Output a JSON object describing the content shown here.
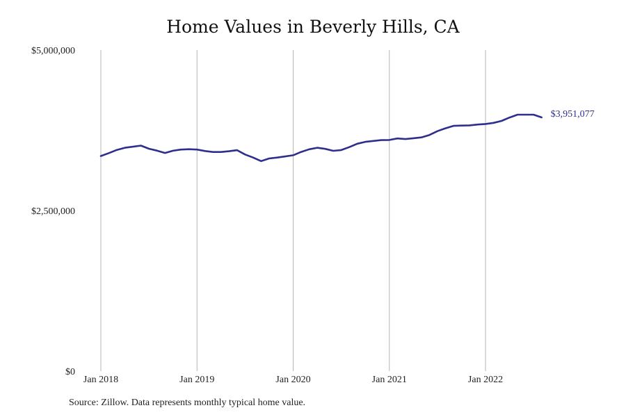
{
  "colors": {
    "line": "#2e2e8c",
    "grid": "#b5b5b5"
  },
  "source": "Source: Zillow. Data represents monthly typical home value.",
  "chart_data": {
    "type": "line",
    "title": "Home Values in Beverly Hills, CA",
    "xlabel": "",
    "ylabel": "",
    "ylim": [
      0,
      5000000
    ],
    "yticks": [
      {
        "value": 0,
        "label": "$0"
      },
      {
        "value": 2500000,
        "label": "$2,500,000"
      },
      {
        "value": 5000000,
        "label": "$5,000,000"
      }
    ],
    "xticks": [
      {
        "value": "2018-01",
        "label": "Jan 2018"
      },
      {
        "value": "2019-01",
        "label": "Jan 2019"
      },
      {
        "value": "2020-01",
        "label": "Jan 2020"
      },
      {
        "value": "2021-01",
        "label": "Jan 2021"
      },
      {
        "value": "2022-01",
        "label": "Jan 2022"
      }
    ],
    "grid": {
      "vertical": true,
      "horizontal": false
    },
    "end_label": "$3,951,077",
    "series": [
      {
        "x": [
          "2018-01",
          "2018-02",
          "2018-03",
          "2018-04",
          "2018-05",
          "2018-06",
          "2018-07",
          "2018-08",
          "2018-09",
          "2018-10",
          "2018-11",
          "2018-12",
          "2019-01",
          "2019-02",
          "2019-03",
          "2019-04",
          "2019-05",
          "2019-06",
          "2019-07",
          "2019-08",
          "2019-09",
          "2019-10",
          "2019-11",
          "2019-12",
          "2020-01",
          "2020-02",
          "2020-03",
          "2020-04",
          "2020-05",
          "2020-06",
          "2020-07",
          "2020-08",
          "2020-09",
          "2020-10",
          "2020-11",
          "2020-12",
          "2021-01",
          "2021-02",
          "2021-03",
          "2021-04",
          "2021-05",
          "2021-06",
          "2021-07",
          "2021-08",
          "2021-09",
          "2021-10",
          "2021-11",
          "2021-12",
          "2022-01",
          "2022-02",
          "2022-03",
          "2022-04",
          "2022-05",
          "2022-06",
          "2022-07",
          "2022-08"
        ],
        "values": [
          3350000,
          3395000,
          3445000,
          3478000,
          3495000,
          3512000,
          3463000,
          3434000,
          3397000,
          3432000,
          3450000,
          3456000,
          3450000,
          3428000,
          3412000,
          3412000,
          3424000,
          3440000,
          3373000,
          3326000,
          3271000,
          3312000,
          3326000,
          3343000,
          3361000,
          3413000,
          3455000,
          3478000,
          3461000,
          3431000,
          3443000,
          3488000,
          3541000,
          3570000,
          3584000,
          3597000,
          3600000,
          3623000,
          3614000,
          3627000,
          3640000,
          3677000,
          3737000,
          3781000,
          3819000,
          3824000,
          3827000,
          3840000,
          3849000,
          3866000,
          3896000,
          3949000,
          3993000,
          3993000,
          3993000,
          3951077
        ]
      }
    ]
  }
}
